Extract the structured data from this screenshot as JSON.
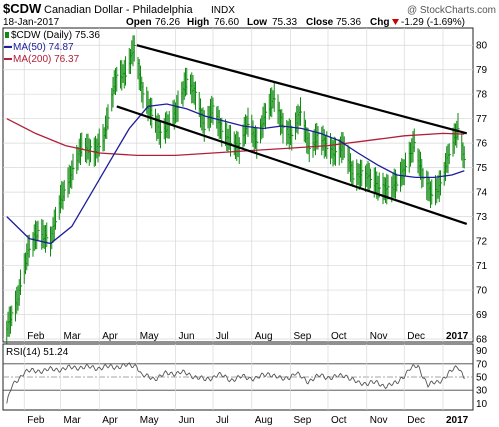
{
  "header": {
    "symbol": "$CDW",
    "name": "Canadian Dollar - Philadelphia",
    "exchange": "INDX",
    "watermark": "@ StockCharts.com",
    "date": "18-Jan-2017",
    "open_label": "Open",
    "open": "76.26",
    "high_label": "High",
    "high": "76.60",
    "low_label": "Low",
    "low": "75.33",
    "close_label": "Close",
    "close": "75.36",
    "chg_label": "Chg",
    "chg": "-1.29 (-1.69%)",
    "chg_arrow": "down-triangle-icon"
  },
  "legend": {
    "price": "$CDW (Daily) 75.36",
    "ma50": "MA(50) 74.87",
    "ma200": "MA(200) 76.37"
  },
  "rsi": {
    "label": "RSI(14) 51.24"
  },
  "colors": {
    "ma50": "#1d1d9a",
    "ma200": "#b0203a",
    "bar": "#118a11",
    "rsi": "#555555",
    "grid": "#d8d8d8",
    "channel": "#000000",
    "down_arrow": "#cc0000"
  },
  "chart_data": [
    {
      "type": "ohlc-bar",
      "ylim": [
        68,
        80.5
      ],
      "yticks": [
        68,
        69,
        70,
        71,
        72,
        73,
        74,
        75,
        76,
        77,
        78,
        79,
        80
      ],
      "xlim": [
        "2016-01-15",
        "2017-01-25"
      ],
      "xticks": [
        {
          "date": "2016-02-01",
          "label": "Feb"
        },
        {
          "date": "2016-03-01",
          "label": "Mar"
        },
        {
          "date": "2016-04-01",
          "label": "Apr"
        },
        {
          "date": "2016-05-01",
          "label": "May"
        },
        {
          "date": "2016-06-01",
          "label": "Jun"
        },
        {
          "date": "2016-07-01",
          "label": "Jul"
        },
        {
          "date": "2016-08-01",
          "label": "Aug"
        },
        {
          "date": "2016-09-01",
          "label": "Sep"
        },
        {
          "date": "2016-10-01",
          "label": "Oct"
        },
        {
          "date": "2016-11-01",
          "label": "Nov"
        },
        {
          "date": "2016-12-01",
          "label": "Dec"
        },
        {
          "date": "2017-01-01",
          "label": "2017"
        }
      ],
      "series": [
        {
          "name": "$CDW (Daily) 75.36",
          "points": [
            [
              "2016-01-18",
              68.4
            ],
            [
              "2016-01-26",
              69.5
            ],
            [
              "2016-02-04",
              71.6
            ],
            [
              "2016-02-12",
              72.4
            ],
            [
              "2016-02-22",
              72.0
            ],
            [
              "2016-03-01",
              73.7
            ],
            [
              "2016-03-08",
              74.5
            ],
            [
              "2016-03-18",
              75.9
            ],
            [
              "2016-03-28",
              75.6
            ],
            [
              "2016-04-05",
              76.3
            ],
            [
              "2016-04-14",
              78.6
            ],
            [
              "2016-04-22",
              78.9
            ],
            [
              "2016-04-29",
              79.9
            ],
            [
              "2016-05-06",
              78.0
            ],
            [
              "2016-05-13",
              77.2
            ],
            [
              "2016-05-20",
              76.4
            ],
            [
              "2016-05-27",
              76.8
            ],
            [
              "2016-06-03",
              77.5
            ],
            [
              "2016-06-10",
              78.6
            ],
            [
              "2016-06-17",
              78.0
            ],
            [
              "2016-06-24",
              76.7
            ],
            [
              "2016-07-01",
              77.4
            ],
            [
              "2016-07-08",
              76.5
            ],
            [
              "2016-07-15",
              76.1
            ],
            [
              "2016-07-22",
              75.8
            ],
            [
              "2016-07-29",
              76.9
            ],
            [
              "2016-08-05",
              76.0
            ],
            [
              "2016-08-12",
              77.2
            ],
            [
              "2016-08-19",
              77.9
            ],
            [
              "2016-08-26",
              76.6
            ],
            [
              "2016-09-02",
              76.3
            ],
            [
              "2016-09-09",
              77.3
            ],
            [
              "2016-09-16",
              75.8
            ],
            [
              "2016-09-23",
              76.3
            ],
            [
              "2016-09-30",
              75.9
            ],
            [
              "2016-10-07",
              75.6
            ],
            [
              "2016-10-14",
              75.9
            ],
            [
              "2016-10-21",
              74.7
            ],
            [
              "2016-10-28",
              74.7
            ],
            [
              "2016-11-04",
              74.6
            ],
            [
              "2016-11-11",
              74.2
            ],
            [
              "2016-11-18",
              74.1
            ],
            [
              "2016-11-25",
              74.4
            ],
            [
              "2016-12-02",
              75.0
            ],
            [
              "2016-12-09",
              76.0
            ],
            [
              "2016-12-16",
              74.6
            ],
            [
              "2016-12-23",
              73.9
            ],
            [
              "2016-12-30",
              74.3
            ],
            [
              "2017-01-06",
              75.6
            ],
            [
              "2017-01-13",
              76.6
            ],
            [
              "2017-01-18",
              75.36
            ]
          ]
        },
        {
          "name": "MA(50) 74.87",
          "points": [
            [
              "2016-01-18",
              73.0
            ],
            [
              "2016-02-05",
              72.1
            ],
            [
              "2016-02-22",
              71.9
            ],
            [
              "2016-03-10",
              72.6
            ],
            [
              "2016-03-25",
              73.9
            ],
            [
              "2016-04-10",
              75.3
            ],
            [
              "2016-04-25",
              76.6
            ],
            [
              "2016-05-10",
              77.5
            ],
            [
              "2016-05-25",
              77.6
            ],
            [
              "2016-06-10",
              77.4
            ],
            [
              "2016-06-25",
              77.1
            ],
            [
              "2016-07-10",
              76.9
            ],
            [
              "2016-07-25",
              76.7
            ],
            [
              "2016-08-10",
              76.6
            ],
            [
              "2016-08-25",
              76.7
            ],
            [
              "2016-09-10",
              76.6
            ],
            [
              "2016-09-25",
              76.4
            ],
            [
              "2016-10-10",
              76.1
            ],
            [
              "2016-10-25",
              75.6
            ],
            [
              "2016-11-10",
              75.1
            ],
            [
              "2016-11-25",
              74.7
            ],
            [
              "2016-12-10",
              74.6
            ],
            [
              "2016-12-25",
              74.6
            ],
            [
              "2017-01-08",
              74.7
            ],
            [
              "2017-01-18",
              74.87
            ]
          ]
        },
        {
          "name": "MA(200) 76.37",
          "points": [
            [
              "2016-01-18",
              77.0
            ],
            [
              "2016-02-10",
              76.4
            ],
            [
              "2016-03-05",
              75.9
            ],
            [
              "2016-04-01",
              75.6
            ],
            [
              "2016-05-01",
              75.5
            ],
            [
              "2016-06-01",
              75.5
            ],
            [
              "2016-07-01",
              75.6
            ],
            [
              "2016-08-01",
              75.7
            ],
            [
              "2016-09-01",
              75.8
            ],
            [
              "2016-10-01",
              75.9
            ],
            [
              "2016-11-01",
              76.1
            ],
            [
              "2016-12-01",
              76.3
            ],
            [
              "2017-01-01",
              76.4
            ],
            [
              "2017-01-18",
              76.37
            ]
          ]
        }
      ],
      "channel_lines": [
        {
          "from": [
            "2016-05-01",
            80.0
          ],
          "to": [
            "2017-01-20",
            76.4
          ]
        },
        {
          "from": [
            "2016-04-15",
            77.5
          ],
          "to": [
            "2017-01-20",
            72.7
          ]
        }
      ]
    },
    {
      "type": "line",
      "ylim": [
        0,
        100
      ],
      "yticks": [
        10,
        30,
        50,
        70,
        90
      ],
      "reference_lines": [
        30,
        50,
        70
      ],
      "series": [
        {
          "name": "RSI(14) 51.24",
          "points": [
            [
              "2016-01-18",
              10
            ],
            [
              "2016-01-22",
              35
            ],
            [
              "2016-02-01",
              58
            ],
            [
              "2016-02-15",
              60
            ],
            [
              "2016-03-01",
              62
            ],
            [
              "2016-03-15",
              65
            ],
            [
              "2016-04-01",
              64
            ],
            [
              "2016-04-15",
              66
            ],
            [
              "2016-05-01",
              68
            ],
            [
              "2016-05-05",
              52
            ],
            [
              "2016-05-15",
              48
            ],
            [
              "2016-05-25",
              55
            ],
            [
              "2016-06-05",
              57
            ],
            [
              "2016-06-15",
              52
            ],
            [
              "2016-06-25",
              45
            ],
            [
              "2016-07-05",
              54
            ],
            [
              "2016-07-15",
              46
            ],
            [
              "2016-07-25",
              50
            ],
            [
              "2016-08-05",
              48
            ],
            [
              "2016-08-15",
              56
            ],
            [
              "2016-08-25",
              46
            ],
            [
              "2016-09-05",
              55
            ],
            [
              "2016-09-15",
              44
            ],
            [
              "2016-09-25",
              52
            ],
            [
              "2016-10-05",
              49
            ],
            [
              "2016-10-15",
              53
            ],
            [
              "2016-10-25",
              40
            ],
            [
              "2016-11-05",
              42
            ],
            [
              "2016-11-15",
              37
            ],
            [
              "2016-11-25",
              40
            ],
            [
              "2016-12-05",
              62
            ],
            [
              "2016-12-12",
              66
            ],
            [
              "2016-12-20",
              38
            ],
            [
              "2016-12-28",
              42
            ],
            [
              "2017-01-06",
              56
            ],
            [
              "2017-01-13",
              66
            ],
            [
              "2017-01-18",
              51.24
            ]
          ]
        }
      ],
      "xticks_label_source": "same as price panel"
    }
  ]
}
